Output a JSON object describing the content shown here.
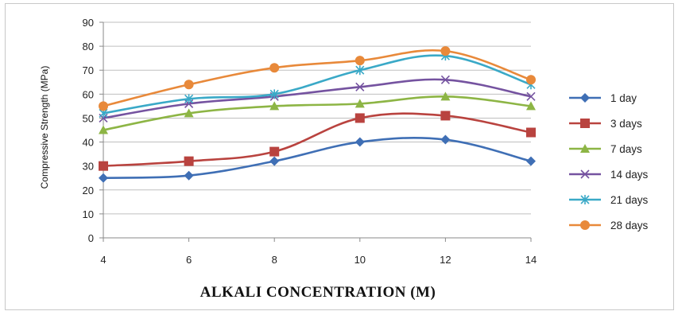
{
  "chart_data": {
    "type": "line",
    "title": "",
    "xlabel": "ALKALI CONCENTRATION (M)",
    "ylabel": "Compressive Strength (MPa)",
    "x": [
      4,
      6,
      8,
      10,
      12,
      14
    ],
    "xlim": [
      4,
      14
    ],
    "ylim": [
      0,
      90
    ],
    "yticks": [
      0,
      10,
      20,
      30,
      40,
      50,
      60,
      70,
      80,
      90
    ],
    "xticks": [
      4,
      6,
      8,
      10,
      12,
      14
    ],
    "grid": "horizontal",
    "legend": "right",
    "series": [
      {
        "name": "1 day",
        "color": "#3f6fb5",
        "marker": "diamond",
        "values": [
          25,
          26,
          32,
          40,
          41,
          32
        ]
      },
      {
        "name": "3 days",
        "color": "#b9433f",
        "marker": "square",
        "values": [
          30,
          32,
          36,
          50,
          51,
          44
        ]
      },
      {
        "name": "7 days",
        "color": "#8db545",
        "marker": "triangle",
        "values": [
          45,
          52,
          55,
          56,
          59,
          55
        ]
      },
      {
        "name": "14 days",
        "color": "#7553a0",
        "marker": "x",
        "values": [
          50,
          56,
          59,
          63,
          66,
          59
        ]
      },
      {
        "name": "21 days",
        "color": "#3aa9c7",
        "marker": "star",
        "values": [
          52,
          58,
          60,
          70,
          76,
          64
        ]
      },
      {
        "name": "28 days",
        "color": "#e8893a",
        "marker": "circle",
        "values": [
          55,
          64,
          71,
          74,
          78,
          66
        ]
      }
    ]
  }
}
